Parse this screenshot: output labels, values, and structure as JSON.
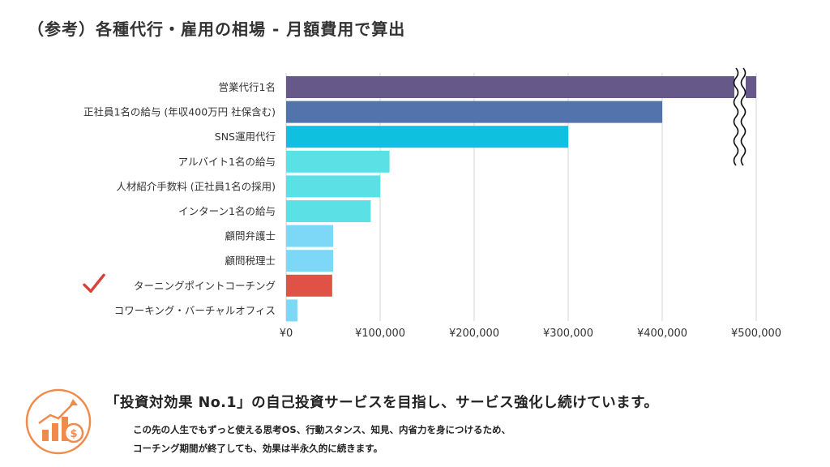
{
  "title": "（参考）各種代行・雇用の相場 - 月額費用で算出",
  "chart_data": {
    "type": "bar",
    "orientation": "horizontal",
    "categories": [
      "営業代行1名",
      "正社員1名の給与 (年収400万円 社保含む)",
      "SNS運用代行",
      "アルバイト1名の給与",
      "人材紹介手数料 (正社員1名の採用)",
      "インターン1名の給与",
      "顧問弁護士",
      "顧問税理士",
      "ターニングポイントコーチング",
      "コワーキング・バーチャルオフィス"
    ],
    "values": [
      500000,
      400000,
      300000,
      110000,
      100000,
      90000,
      50000,
      50000,
      49000,
      12000
    ],
    "bar_colors": [
      "#66598a",
      "#5373ad",
      "#0fc0df",
      "#5be0e6",
      "#5be0e6",
      "#5be0e6",
      "#7dd8f7",
      "#7dd8f7",
      "#e05245",
      "#7dd8f7"
    ],
    "highlight_index": 8,
    "highlight_mark": "✓",
    "highlight_color": "#d9423c",
    "xlim": [
      0,
      500000
    ],
    "xticks": [
      0,
      100000,
      200000,
      300000,
      400000,
      500000
    ],
    "xtick_labels": [
      "¥0",
      "¥100,000",
      "¥200,000",
      "¥300,000",
      "¥400,000",
      "¥500,000"
    ],
    "axis_break": "first bar (broken axis)",
    "grid": "vertical",
    "grid_color": "#d4d4d4",
    "xlabel": "",
    "ylabel": ""
  },
  "footer": {
    "icon": "growth-chart-coin-icon",
    "icon_color": "#f08a4b",
    "headline": "「投資対効果 No.1」の自己投資サービスを目指し、サービス強化し続けています。",
    "lines": [
      "この先の人生でもずっと使える思考OS、行動スタンス、知見、内省力を身につけるため、",
      "コーチング期間が終了しても、効果は半永久的に続きます。"
    ]
  }
}
